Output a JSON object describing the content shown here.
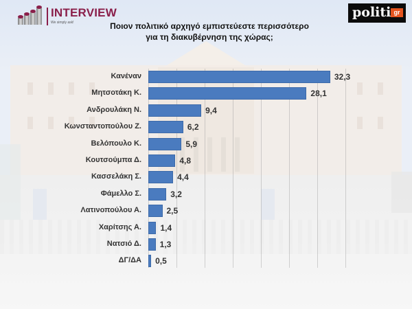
{
  "header": {
    "brand_left": {
      "name": "INTERVIEW",
      "tagline": "We simply ask!",
      "color": "#8a1f4a"
    },
    "brand_right": {
      "name": "politic",
      "suffix": "gr",
      "suffix_color": "#e5541f"
    },
    "title_line1": "Ποιον πολιτικό αρχηγό εμπιστεύεστε περισσότερο",
    "title_line2": "για τη διακυβέρνηση της χώρας;"
  },
  "chart_data": {
    "type": "bar",
    "orientation": "horizontal",
    "title": "Ποιον πολιτικό αρχηγό εμπιστεύεστε περισσότερο για τη διακυβέρνηση της χώρας;",
    "xlabel": "",
    "ylabel": "",
    "categories": [
      "Κανέναν",
      "Μητσοτάκη Κ.",
      "Ανδρουλάκη Ν.",
      "Κωνσταντοπούλου Ζ.",
      "Βελόπουλο Κ.",
      "Κουτσούμπα Δ.",
      "Κασσελάκη Σ.",
      "Φάμελλο Σ.",
      "Λατινοπούλου Α.",
      "Χαρίτσης Α.",
      "Νατσιό Δ.",
      "ΔΓ/ΔΑ"
    ],
    "values": [
      32.3,
      28.1,
      9.4,
      6.2,
      5.9,
      4.8,
      4.4,
      3.2,
      2.5,
      1.4,
      1.3,
      0.5
    ],
    "value_labels": [
      "32,3",
      "28,1",
      "9,4",
      "6,2",
      "5,9",
      "4,8",
      "4,4",
      "3,2",
      "2,5",
      "1,4",
      "1,3",
      "0,5"
    ],
    "xlim": [
      0,
      35
    ],
    "grid_step": 5,
    "grid": true,
    "legend": "none",
    "bar_color": "#4a7bbf"
  }
}
